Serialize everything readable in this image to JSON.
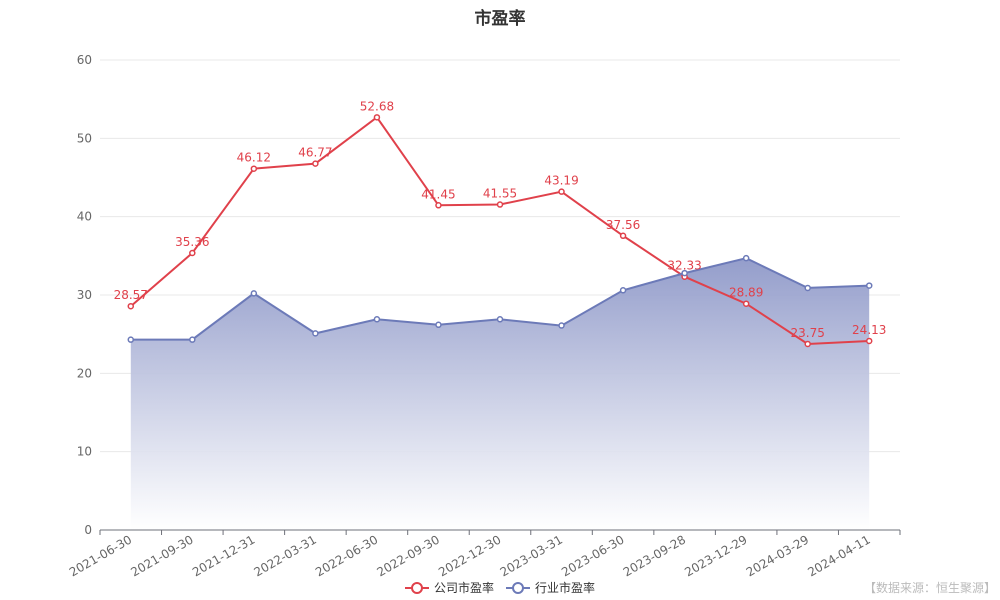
{
  "title": "市盈率",
  "source": "【数据来源：恒生聚源】",
  "colors": {
    "company": "#e0414b",
    "industry": "#6c7ab8",
    "industry_fill_top": "#8e98c8",
    "grid": "#e8e8e8",
    "axis_text": "#666666"
  },
  "chart_data": {
    "type": "line",
    "title": "市盈率",
    "categories": [
      "2021-06-30",
      "2021-09-30",
      "2021-12-31",
      "2022-03-31",
      "2022-06-30",
      "2022-09-30",
      "2022-12-30",
      "2023-03-31",
      "2023-06-30",
      "2023-09-28",
      "2023-12-29",
      "2024-03-29",
      "2024-04-11"
    ],
    "ylim": [
      0,
      60
    ],
    "yticks": [
      0,
      10,
      20,
      30,
      40,
      50,
      60
    ],
    "grid": true,
    "legend_position": "bottom",
    "series": [
      {
        "name": "公司市盈率",
        "kind": "line",
        "show_labels": true,
        "values": [
          28.57,
          35.36,
          46.12,
          46.77,
          52.68,
          41.45,
          41.55,
          43.19,
          37.56,
          32.33,
          28.89,
          23.75,
          24.13
        ],
        "labels": [
          "28.57",
          "35.36",
          "46.12",
          "46.77",
          "52.68",
          "41.45",
          "41.55",
          "43.19",
          "37.56",
          "32.33",
          "28.89",
          "23.75",
          "24.13"
        ]
      },
      {
        "name": "行业市盈率",
        "kind": "area",
        "show_labels": false,
        "values": [
          24.3,
          24.3,
          30.2,
          25.1,
          26.9,
          26.2,
          26.9,
          26.1,
          30.6,
          32.8,
          34.7,
          30.9,
          31.2
        ]
      }
    ]
  }
}
